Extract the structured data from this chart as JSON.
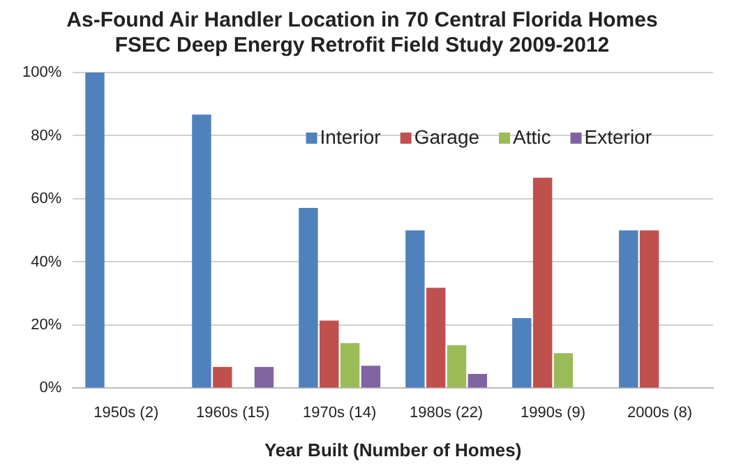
{
  "chart_data": {
    "type": "bar",
    "title": "As-Found Air Handler Location in 70 Central Florida Homes\nFSEC Deep Energy Retrofit Field Study 2009-2012",
    "xlabel": "Year Built (Number of Homes)",
    "categories": [
      "1950s (2)",
      "1960s (15)",
      "1970s (14)",
      "1980s (22)",
      "1990s (9)",
      "2000s (8)"
    ],
    "series": [
      {
        "name": "Interior",
        "color": "#4f81bd",
        "values": [
          100,
          86.7,
          57.1,
          50,
          22.2,
          50
        ]
      },
      {
        "name": "Garage",
        "color": "#c0504d",
        "values": [
          0,
          6.7,
          21.4,
          31.8,
          66.7,
          50
        ]
      },
      {
        "name": "Attic",
        "color": "#9bbb59",
        "values": [
          0,
          0,
          14.3,
          13.6,
          11.1,
          0
        ]
      },
      {
        "name": "Exterior",
        "color": "#8064a2",
        "values": [
          0,
          6.7,
          7.1,
          4.5,
          0,
          0
        ]
      }
    ],
    "ylim": [
      0,
      100
    ],
    "yticks": [
      {
        "value": 0,
        "label": "0%"
      },
      {
        "value": 20,
        "label": "20%"
      },
      {
        "value": 40,
        "label": "40%"
      },
      {
        "value": 60,
        "label": "60%"
      },
      {
        "value": 80,
        "label": "80%"
      },
      {
        "value": 100,
        "label": "100%"
      }
    ],
    "grid": "y",
    "legend": "top right"
  }
}
